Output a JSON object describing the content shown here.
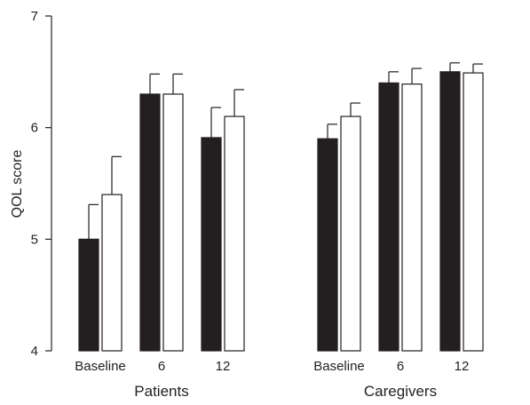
{
  "chart_data": {
    "type": "bar",
    "title": "",
    "xlabel": "",
    "ylabel": "QOL score",
    "ylim": [
      4,
      7
    ],
    "yticks": [
      "4",
      "5",
      "6",
      "7"
    ],
    "error_bars": true,
    "legend": "none",
    "groups": [
      {
        "label": "Patients",
        "categories": [
          "Baseline",
          "6",
          "12"
        ],
        "series": [
          {
            "fill": "#231f20",
            "values": [
              5.0,
              6.3,
              5.91
            ],
            "errors": [
              0.31,
              0.18,
              0.27
            ]
          },
          {
            "fill": "#ffffff",
            "values": [
              5.4,
              6.3,
              6.1
            ],
            "errors": [
              0.34,
              0.18,
              0.24
            ]
          }
        ]
      },
      {
        "label": "Caregivers",
        "categories": [
          "Baseline",
          "6",
          "12"
        ],
        "series": [
          {
            "fill": "#231f20",
            "values": [
              5.9,
              6.4,
              6.5
            ],
            "errors": [
              0.13,
              0.1,
              0.08
            ]
          },
          {
            "fill": "#ffffff",
            "values": [
              6.1,
              6.39,
              6.49
            ],
            "errors": [
              0.12,
              0.14,
              0.08
            ]
          }
        ]
      }
    ]
  }
}
